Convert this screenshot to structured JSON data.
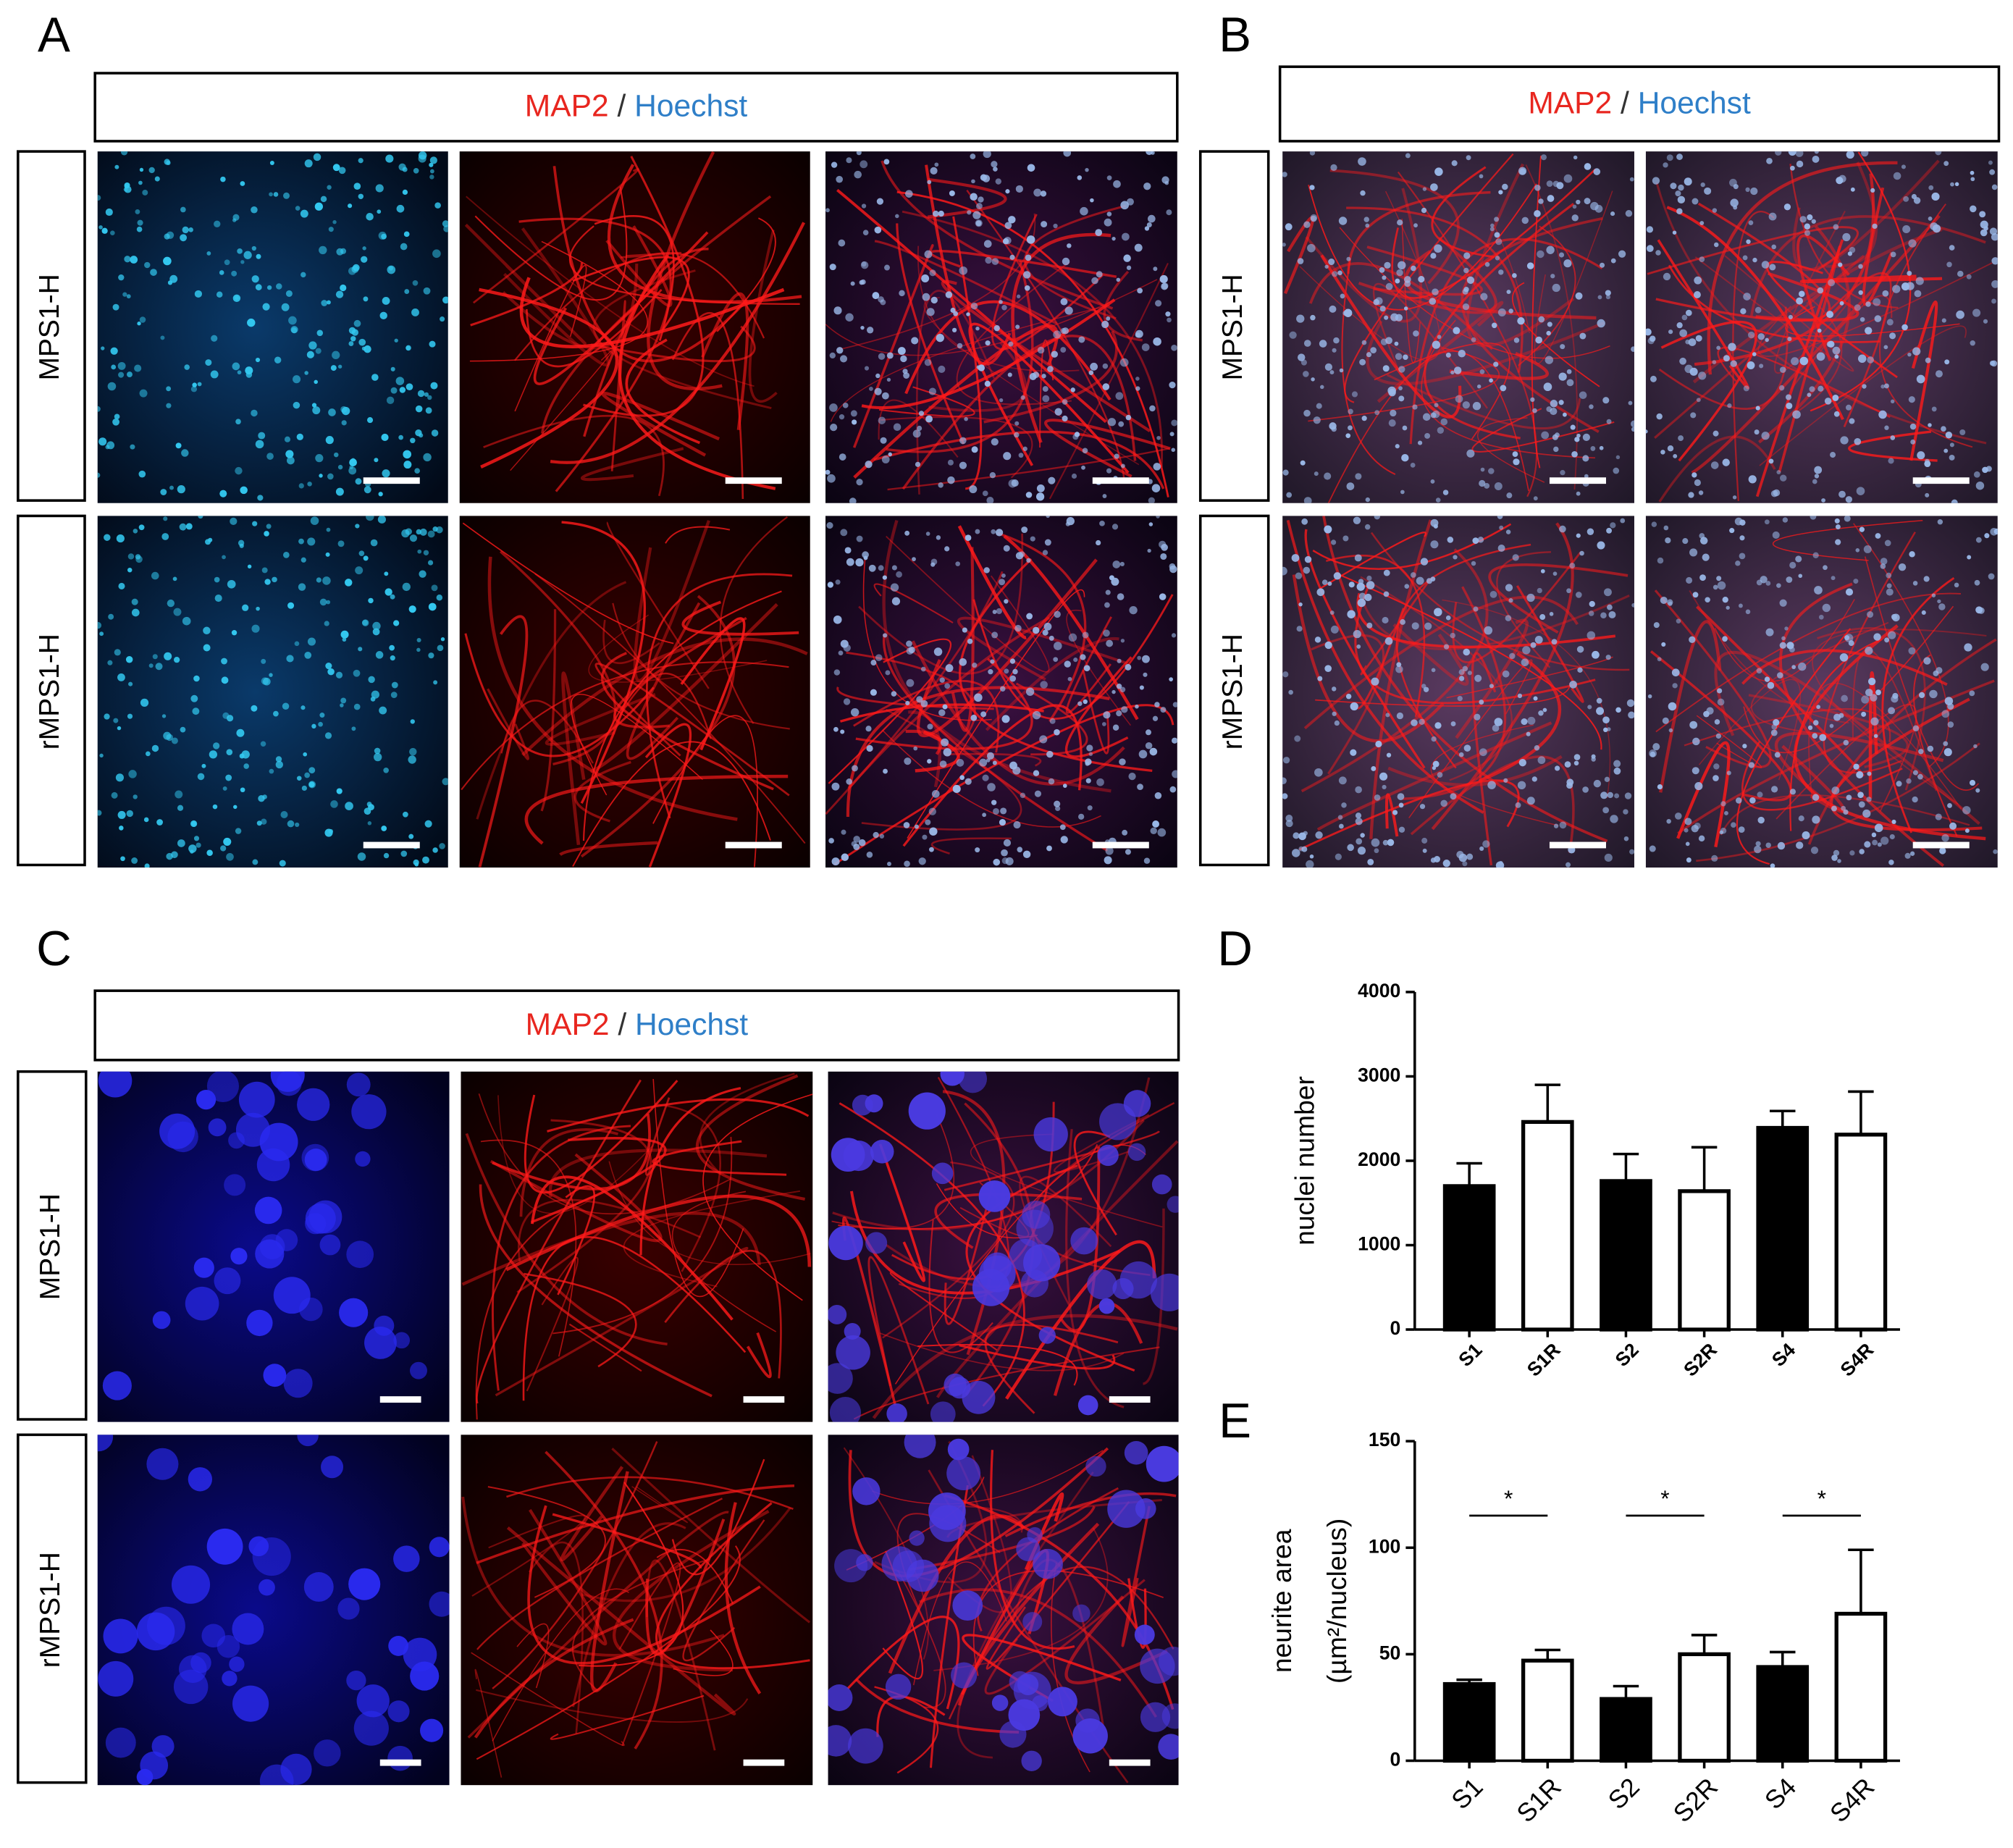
{
  "panels": [
    {
      "label": "A",
      "header": [
        "MAP2",
        "/",
        "Hoechst"
      ],
      "rows": [
        "MPS1-H",
        "rMPS1-H"
      ]
    },
    {
      "label": "B",
      "header": [
        "MAP2",
        "/",
        "Hoechst"
      ],
      "rows": [
        "MPS1-H",
        "rMPS1-H"
      ]
    },
    {
      "label": "C",
      "header": [
        "MAP2",
        "/",
        "Hoechst"
      ],
      "rows": [
        "MPS1-H",
        "rMPS1-H"
      ]
    }
  ],
  "chart_data": [
    {
      "type": "bar",
      "label": "D",
      "ylabel": [
        "nuclei number"
      ],
      "categories": [
        "S1",
        "S1R",
        "S2",
        "S2R",
        "S4",
        "S4R"
      ],
      "values": [
        1700,
        2460,
        1760,
        1640,
        2390,
        2310
      ],
      "errors": [
        270,
        440,
        320,
        520,
        200,
        510
      ],
      "colors": [
        "#000000",
        "#ffffff",
        "#000000",
        "#ffffff",
        "#000000",
        "#ffffff"
      ],
      "ylim": [
        0,
        4000
      ],
      "yticks": [
        0,
        1000,
        2000,
        3000,
        4000
      ]
    },
    {
      "type": "bar",
      "label": "E",
      "ylabel": [
        "neurite area",
        "(µm²/nucleus)"
      ],
      "categories": [
        "S1",
        "S1R",
        "S2",
        "S2R",
        "S4",
        "S4R"
      ],
      "values": [
        36,
        47,
        29,
        50,
        44,
        69
      ],
      "errors": [
        2,
        5,
        6,
        9,
        7,
        30
      ],
      "colors": [
        "#000000",
        "#ffffff",
        "#000000",
        "#ffffff",
        "#000000",
        "#ffffff"
      ],
      "ylim": [
        0,
        150
      ],
      "yticks": [
        0,
        50,
        100,
        150
      ],
      "annotations": [
        {
          "text": "*",
          "pair": [
            "S1",
            "S1R"
          ]
        },
        {
          "text": "*",
          "pair": [
            "S2",
            "S2R"
          ]
        },
        {
          "text": "*",
          "pair": [
            "S4",
            "S4R"
          ]
        }
      ]
    }
  ]
}
